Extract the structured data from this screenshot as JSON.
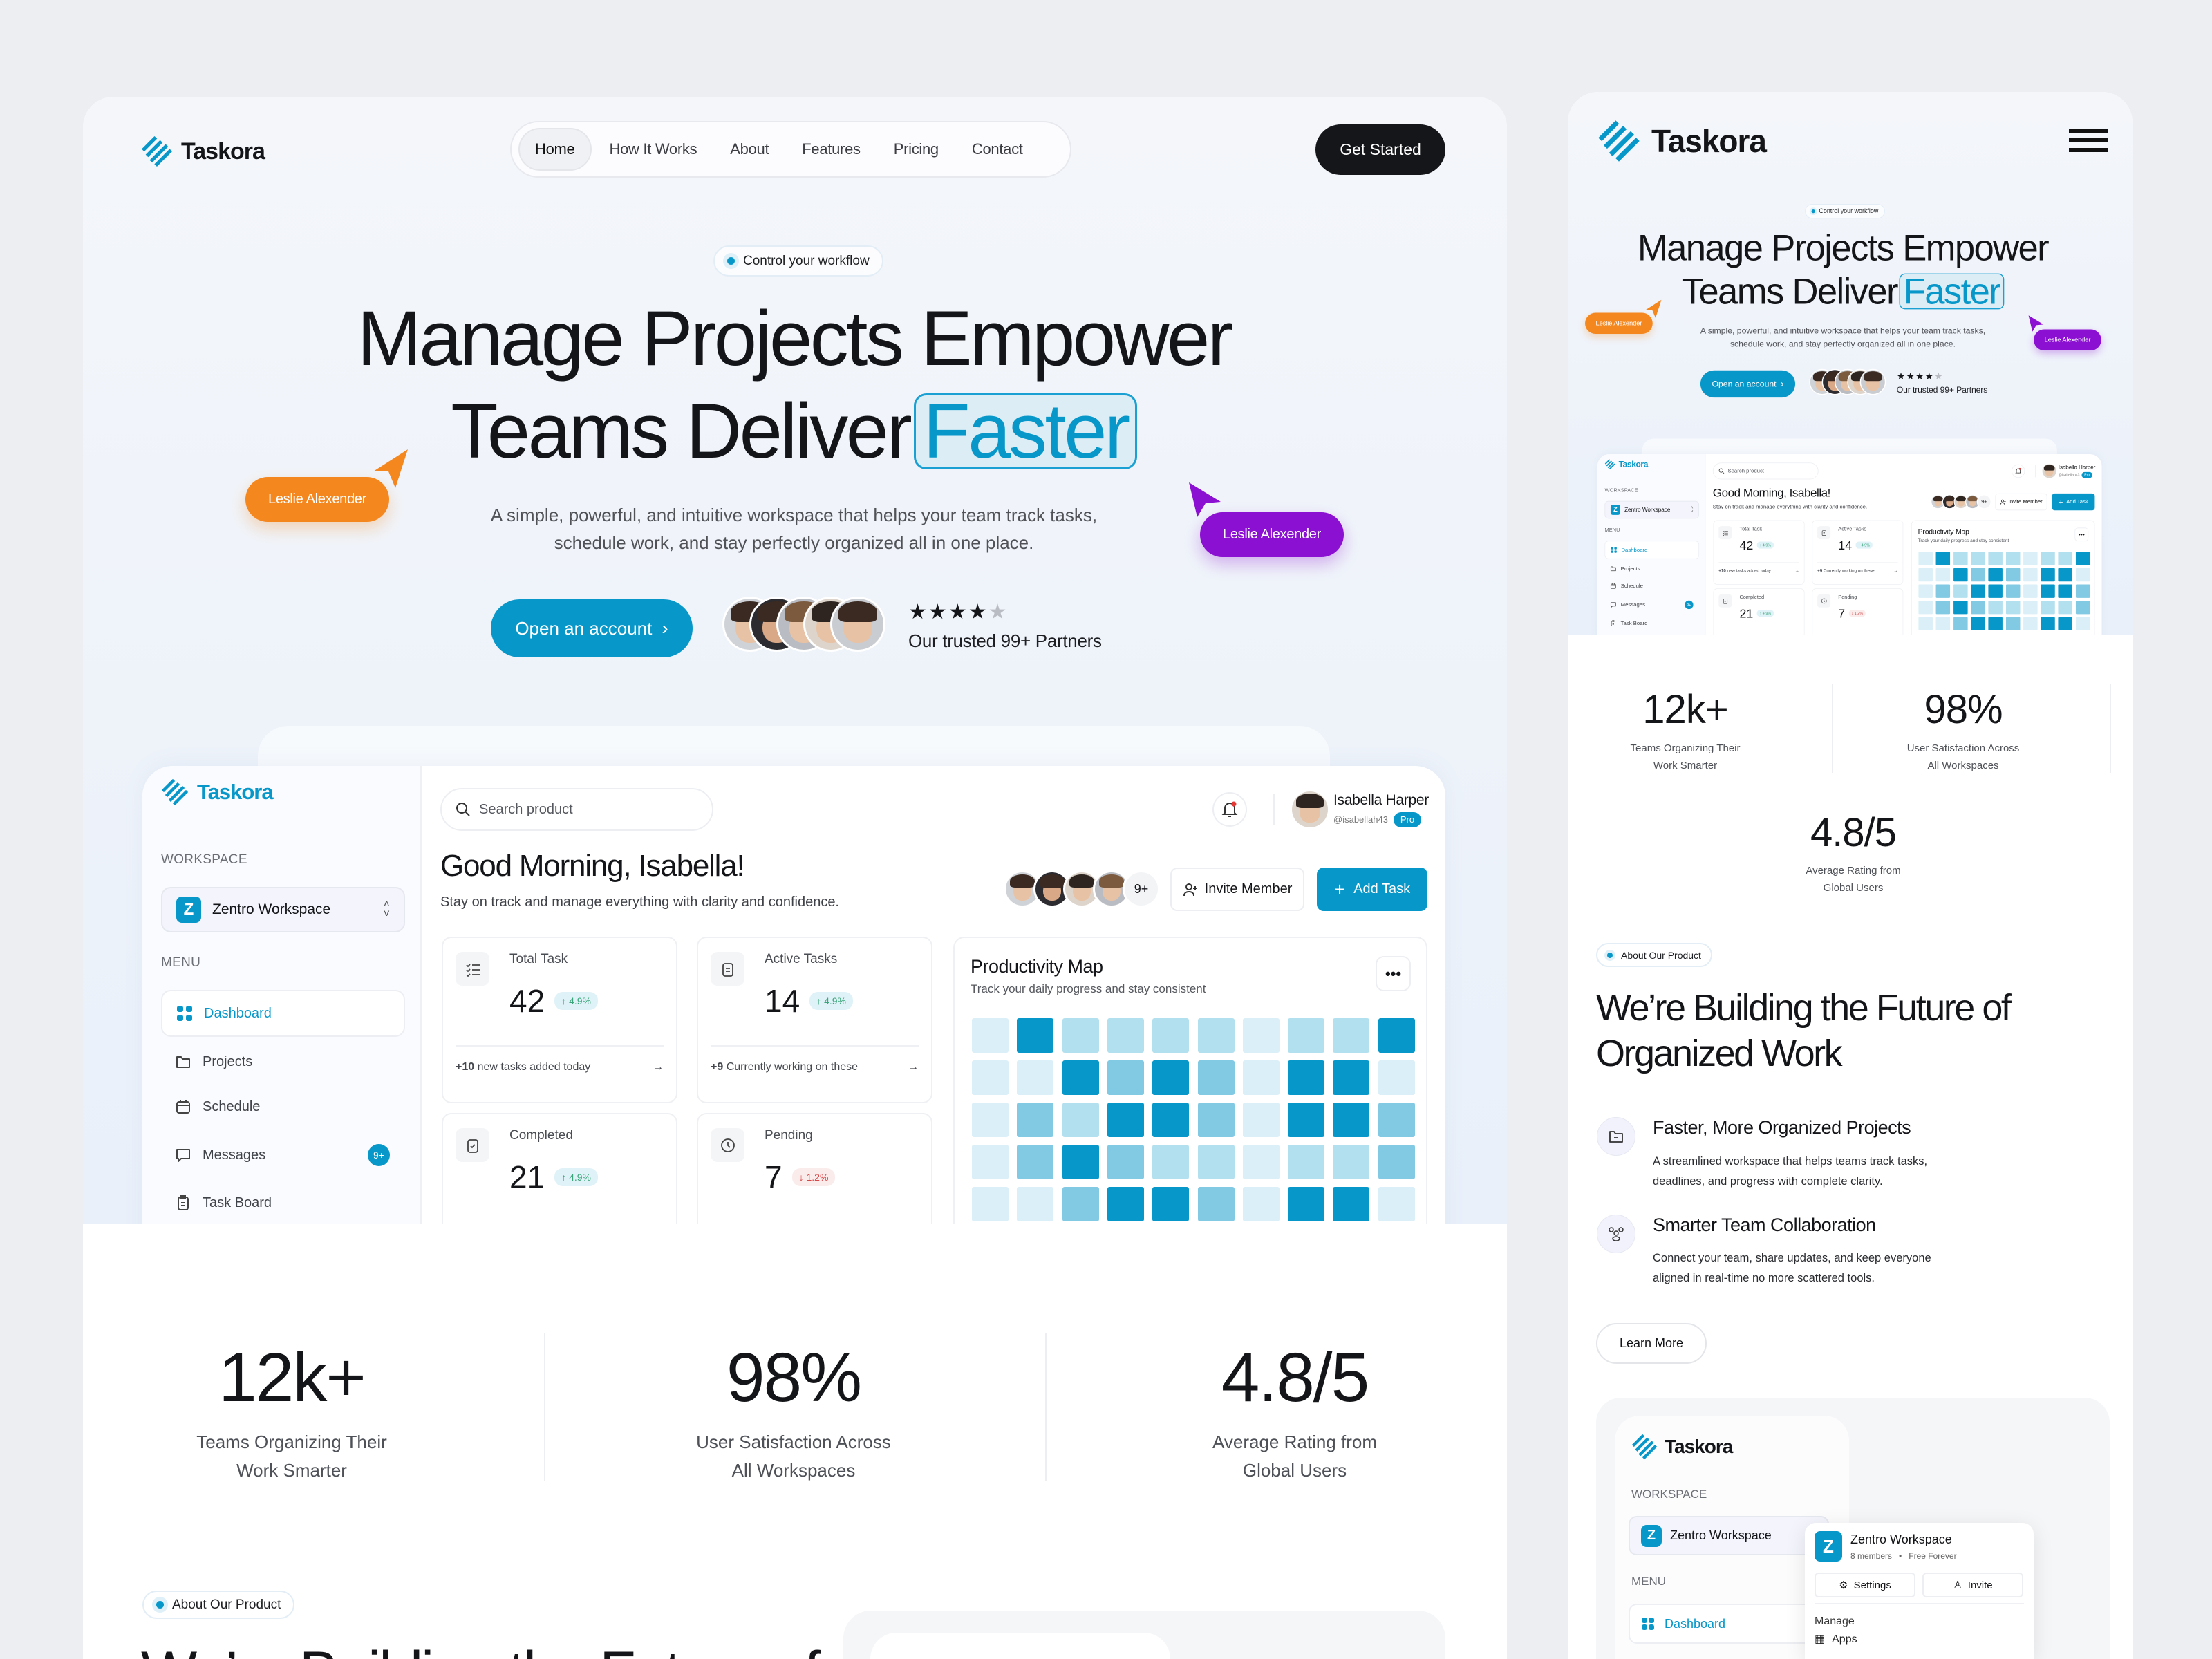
{
  "brand": {
    "name": "Taskora",
    "accent": "#0797c9"
  },
  "nav": {
    "items": [
      "Home",
      "How It Works",
      "About",
      "Features",
      "Pricing",
      "Contact"
    ],
    "active": "Home",
    "cta": "Get Started"
  },
  "hero": {
    "badge": "Control your workflow",
    "line1": "Manage Projects Empower",
    "line2": "Teams Deliver",
    "highlight": "Faster",
    "subtitle1": "A simple, powerful, and intuitive workspace that helps your team track tasks,",
    "subtitle2": "schedule work, and stay perfectly organized all in one place.",
    "cursor_left": "Leslie Alexender",
    "cursor_right": "Leslie Alexender",
    "cursor_colors": {
      "left": "#f5871f",
      "right": "#8b10d1"
    },
    "cta": "Open an account",
    "rating": 4,
    "rating_max": 5,
    "partners": "Our trusted 99+ Partners"
  },
  "dashboard": {
    "sidebar": {
      "workspace_label": "WORKSPACE",
      "workspace": "Zentro Workspace",
      "workspace_initial": "Z",
      "menu_label": "MENU",
      "items": [
        {
          "label": "Dashboard",
          "icon": "grid-icon",
          "active": true
        },
        {
          "label": "Projects",
          "icon": "folder-icon"
        },
        {
          "label": "Schedule",
          "icon": "calendar-icon"
        },
        {
          "label": "Messages",
          "icon": "chat-icon",
          "badge": "9+"
        },
        {
          "label": "Task Board",
          "icon": "clipboard-icon"
        }
      ]
    },
    "search_placeholder": "Search product",
    "user": {
      "name": "Isabella Harper",
      "handle": "@isabellah43",
      "plan": "Pro"
    },
    "greeting": "Good Morning, Isabella!",
    "subtitle": "Stay on track and manage everything with clarity and confidence.",
    "team_more": "9+",
    "invite": "Invite Member",
    "add_task": "Add Task",
    "stats": [
      {
        "label": "Total Task",
        "value": "42",
        "change": "4.9%",
        "trend": "up",
        "footer_bold": "+10",
        "footer": " new tasks added today"
      },
      {
        "label": "Active Tasks",
        "value": "14",
        "change": "4.9%",
        "trend": "up",
        "footer_bold": "+9",
        "footer": " Currently working on these"
      },
      {
        "label": "Completed",
        "value": "21",
        "change": "4.9%",
        "trend": "up"
      },
      {
        "label": "Pending",
        "value": "7",
        "change": "1.2%",
        "trend": "down"
      }
    ],
    "productivity": {
      "title": "Productivity Map",
      "subtitle": "Track your daily progress and stay consistent",
      "level_colors": [
        "#daeff7",
        "#b3e0ef",
        "#82c9e3",
        "#0797c9"
      ],
      "levels": [
        [
          0,
          3,
          1,
          1,
          1,
          1,
          0,
          1,
          1,
          3
        ],
        [
          0,
          0,
          3,
          2,
          3,
          2,
          0,
          3,
          3,
          0
        ],
        [
          0,
          2,
          1,
          3,
          3,
          2,
          0,
          3,
          3,
          2
        ],
        [
          0,
          2,
          3,
          2,
          1,
          1,
          0,
          1,
          1,
          2
        ],
        [
          0,
          0,
          2,
          3,
          3,
          2,
          0,
          3,
          3,
          0
        ]
      ]
    }
  },
  "stats": [
    {
      "value": "12k+",
      "label1": "Teams Organizing Their",
      "label2": "Work Smarter"
    },
    {
      "value": "98%",
      "label1": "User Satisfaction Across",
      "label2": "All Workspaces"
    },
    {
      "value": "4.8/5",
      "label1": "Average Rating from",
      "label2": "Global Users"
    }
  ],
  "about": {
    "badge": "About Our Product",
    "heading1": "We’re Building the Future of",
    "heading2": "Organized Work",
    "features": [
      {
        "title": "Faster, More Organized Projects",
        "desc1": "A streamlined workspace that helps teams track tasks,",
        "desc2": "deadlines, and progress with complete clarity.",
        "icon": "folder-icon"
      },
      {
        "title": "Smarter Team Collaboration",
        "desc1": "Connect your team, share updates, and keep everyone",
        "desc2": "aligned in real-time  no more scattered tools.",
        "icon": "team-icon"
      }
    ],
    "learn_more": "Learn More"
  },
  "workspace_popup": {
    "name": "Zentro Workspace",
    "members": "8 members",
    "plan": "Free Forever",
    "settings": "Settings",
    "invite": "Invite",
    "manage": "Manage",
    "apps": "Apps"
  }
}
